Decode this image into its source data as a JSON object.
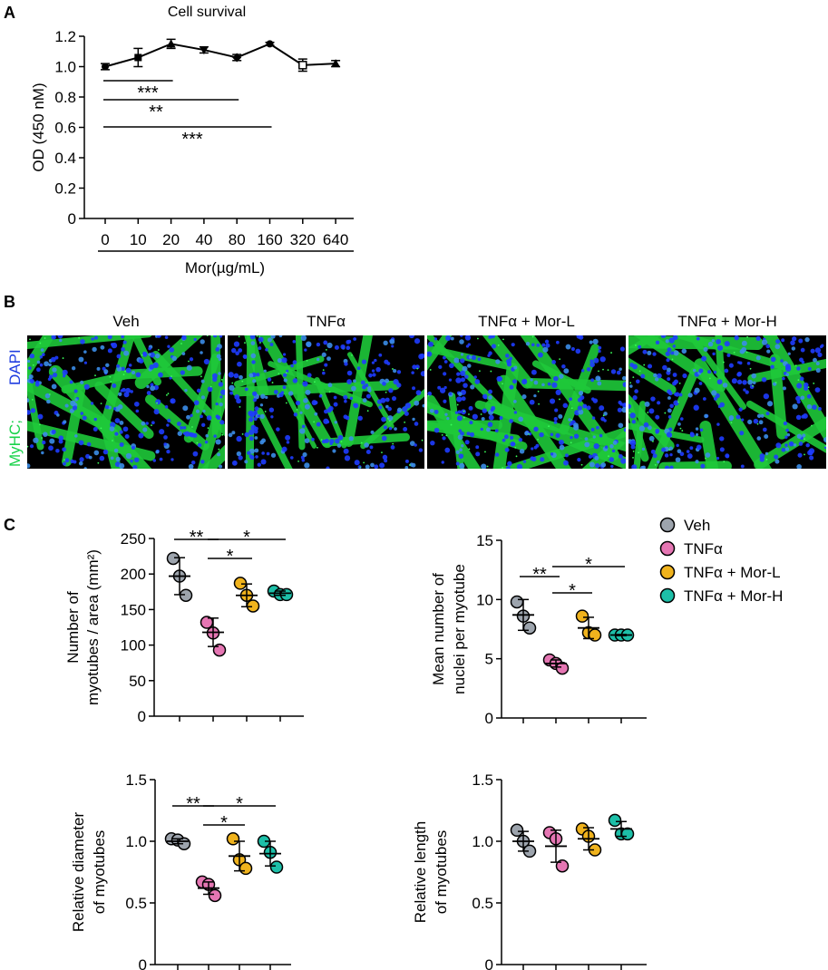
{
  "panels": {
    "A": {
      "label": "A"
    },
    "B": {
      "label": "B",
      "stain_label_green": "MyHC;",
      "stain_label_blue": "DAPI",
      "image_titles": [
        "Veh",
        "TNFα",
        "TNFα + Mor-L",
        "TNFα + Mor-H"
      ]
    },
    "C": {
      "label": "C"
    }
  },
  "legend": {
    "items": [
      {
        "label": "Veh",
        "color": "#9da4ad"
      },
      {
        "label": "TNFα",
        "color": "#e576b3"
      },
      {
        "label": "TNFα + Mor-L",
        "color": "#f0b31d"
      },
      {
        "label": "TNFα + Mor-H",
        "color": "#1dbfa8"
      }
    ]
  },
  "chart_data": [
    {
      "id": "survival",
      "type": "line",
      "title": "Cell survival",
      "ylabel": "OD (450 nM)",
      "xlabel": "Mor(µg/mL)",
      "categories": [
        "0",
        "10",
        "20",
        "40",
        "80",
        "160",
        "320",
        "640"
      ],
      "yticks": [
        "0",
        "0.2",
        "0.4",
        "0.6",
        "0.8",
        "1.0",
        "1.2"
      ],
      "ylim": [
        0,
        1.2
      ],
      "values": [
        1.0,
        1.06,
        1.15,
        1.11,
        1.06,
        1.15,
        1.01,
        1.02
      ],
      "errors": [
        0.02,
        0.06,
        0.03,
        0.02,
        0.02,
        0.01,
        0.04,
        0.02
      ],
      "markers": [
        "circle",
        "square",
        "triangle",
        "triangle-down",
        "diamond",
        "circle",
        "square-open",
        "triangle"
      ],
      "significance": [
        {
          "from": 0,
          "to": 2,
          "label": "***"
        },
        {
          "from": 0,
          "to": 4,
          "label": "**"
        },
        {
          "from": 0,
          "to": 5,
          "label": "***"
        }
      ]
    },
    {
      "id": "myotube_count",
      "type": "scatter",
      "ylabel_lines": [
        "Number of",
        "myotubes / area (mm²)"
      ],
      "yticks": [
        "0",
        "50",
        "100",
        "150",
        "200",
        "250"
      ],
      "ylim": [
        0,
        250
      ],
      "groups": [
        {
          "points": [
            222,
            197,
            170
          ],
          "mean": 197,
          "sd": 26
        },
        {
          "points": [
            132,
            117,
            93
          ],
          "mean": 118,
          "sd": 20
        },
        {
          "points": [
            187,
            170,
            155
          ],
          "mean": 170,
          "sd": 16
        },
        {
          "points": [
            176,
            171,
            171
          ],
          "mean": 173,
          "sd": 3
        }
      ],
      "significance": [
        {
          "from": 0,
          "to": 1,
          "label": "**"
        },
        {
          "from": 1,
          "to": 3,
          "label": "*"
        },
        {
          "from": 1,
          "to": 2,
          "label": "*"
        }
      ]
    },
    {
      "id": "nuclei_per_myotube",
      "type": "scatter",
      "ylabel_lines": [
        "Mean number of",
        "nuclei per myotube"
      ],
      "yticks": [
        "0",
        "5",
        "10",
        "15"
      ],
      "ylim": [
        0,
        15
      ],
      "groups": [
        {
          "points": [
            9.8,
            8.6,
            7.6
          ],
          "mean": 8.7,
          "sd": 1.3
        },
        {
          "points": [
            4.9,
            4.6,
            4.2
          ],
          "mean": 4.6,
          "sd": 0.3
        },
        {
          "points": [
            8.6,
            7.2,
            7.0
          ],
          "mean": 7.6,
          "sd": 0.9
        },
        {
          "points": [
            7.0,
            7.0,
            7.0
          ],
          "mean": 7.0,
          "sd": 0.05
        }
      ],
      "significance": [
        {
          "from": 0,
          "to": 1,
          "label": "**"
        },
        {
          "from": 1,
          "to": 3,
          "label": "*"
        },
        {
          "from": 1,
          "to": 2,
          "label": "*"
        }
      ]
    },
    {
      "id": "diameter",
      "type": "scatter",
      "ylabel_lines": [
        "Relative diameter",
        "of myotubes"
      ],
      "yticks": [
        "0",
        "0.5",
        "1.0",
        "1.5"
      ],
      "ylim": [
        0,
        1.5
      ],
      "groups": [
        {
          "points": [
            1.02,
            1.01,
            0.98
          ],
          "mean": 1.0,
          "sd": 0.02
        },
        {
          "points": [
            0.67,
            0.65,
            0.56
          ],
          "mean": 0.62,
          "sd": 0.05
        },
        {
          "points": [
            1.02,
            0.85,
            0.78
          ],
          "mean": 0.88,
          "sd": 0.12
        },
        {
          "points": [
            1.0,
            0.91,
            0.79
          ],
          "mean": 0.9,
          "sd": 0.1
        }
      ],
      "significance": [
        {
          "from": 0,
          "to": 1,
          "label": "**"
        },
        {
          "from": 1,
          "to": 3,
          "label": "*"
        },
        {
          "from": 1,
          "to": 2,
          "label": "*"
        }
      ]
    },
    {
      "id": "length",
      "type": "scatter",
      "ylabel_lines": [
        "Relative length",
        "of myotubes"
      ],
      "yticks": [
        "0",
        "0.5",
        "1.0",
        "1.5"
      ],
      "ylim": [
        0,
        1.5
      ],
      "groups": [
        {
          "points": [
            1.09,
            1.0,
            0.92
          ],
          "mean": 1.0,
          "sd": 0.08
        },
        {
          "points": [
            1.07,
            1.02,
            0.8
          ],
          "mean": 0.96,
          "sd": 0.13
        },
        {
          "points": [
            1.1,
            1.04,
            0.93
          ],
          "mean": 1.02,
          "sd": 0.09
        },
        {
          "points": [
            1.17,
            1.06,
            1.06
          ],
          "mean": 1.1,
          "sd": 0.06
        }
      ],
      "significance": []
    }
  ]
}
